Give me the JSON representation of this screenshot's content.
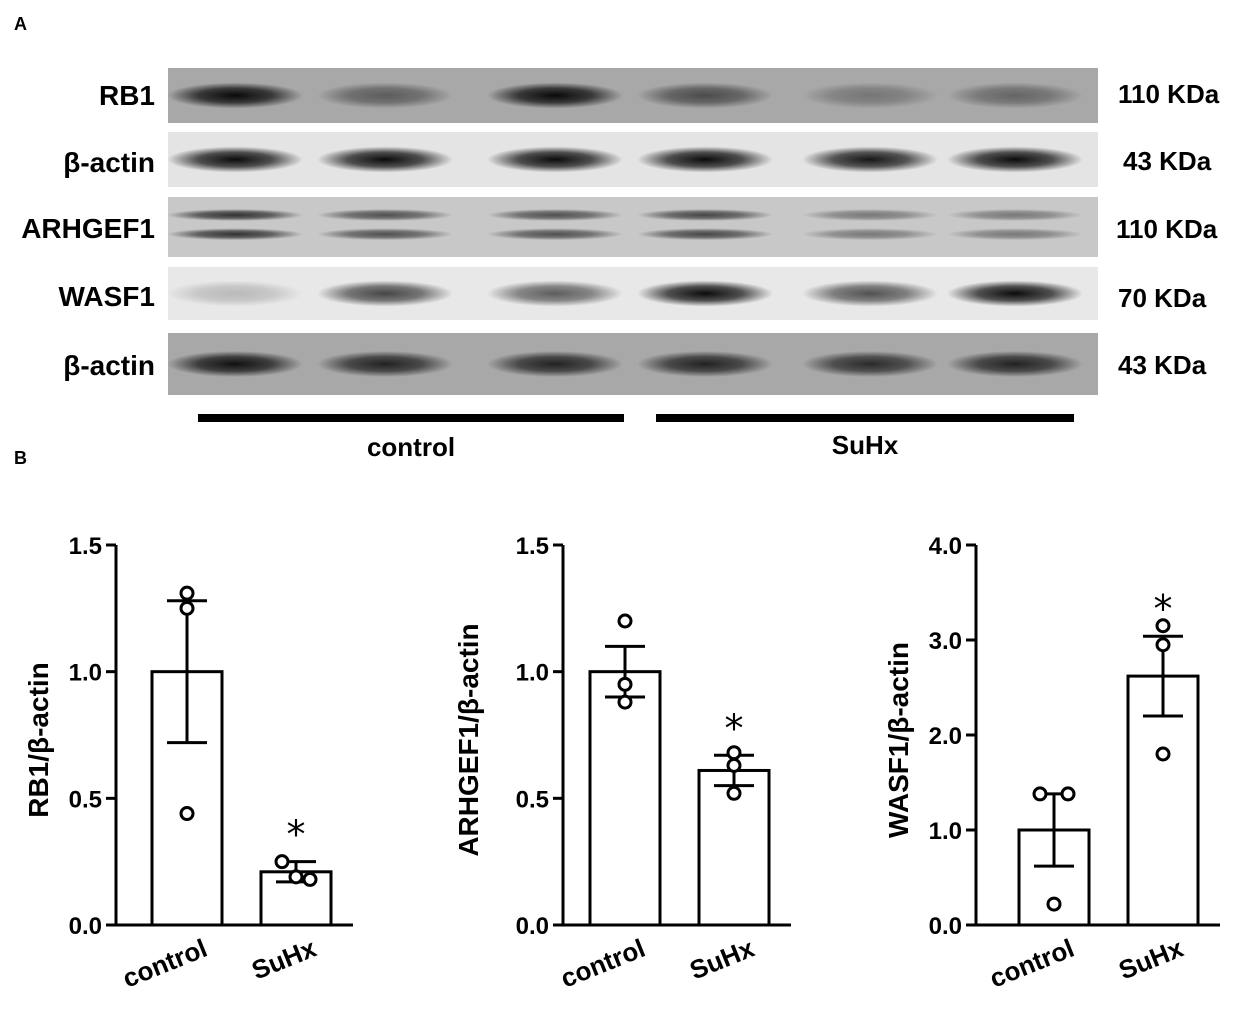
{
  "panels": {
    "a": "A",
    "b": "B"
  },
  "blot": {
    "rows": [
      {
        "name": "RB1",
        "kda": "110 KDa",
        "bg": "#a8a8a8",
        "bands": [
          0.95,
          0.45,
          0.95,
          0.55,
          0.3,
          0.4
        ],
        "double": false
      },
      {
        "name": "β-actin",
        "kda": "43 KDa",
        "bg": "#e4e4e4",
        "bands": [
          0.95,
          0.95,
          0.95,
          0.95,
          0.9,
          0.95
        ],
        "double": false
      },
      {
        "name": "ARHGEF1",
        "kda": "110 KDa",
        "bg": "#c8c8c8",
        "bands": [
          0.75,
          0.6,
          0.6,
          0.65,
          0.4,
          0.4
        ],
        "double": true
      },
      {
        "name": "WASF1",
        "kda": "70 KDa",
        "bg": "#e8e8e8",
        "bands": [
          0.2,
          0.7,
          0.6,
          0.95,
          0.65,
          0.95
        ],
        "double": false
      },
      {
        "name": "β-actin",
        "kda": "43 KDa",
        "bg": "#a8a8a8",
        "bands": [
          0.9,
          0.8,
          0.8,
          0.8,
          0.75,
          0.8
        ],
        "double": false
      }
    ],
    "groups": [
      {
        "label": "control"
      },
      {
        "label": "SuHx"
      }
    ]
  },
  "chart_data": [
    {
      "type": "bar",
      "categories": [
        "control",
        "SuHx"
      ],
      "values": [
        1.0,
        0.21
      ],
      "sem": [
        0.28,
        0.04
      ],
      "points": [
        [
          1.31,
          1.25,
          0.44
        ],
        [
          0.25,
          0.18,
          0.19
        ]
      ],
      "ylabel": "RB1/β-actin",
      "ylim": [
        0,
        1.5
      ],
      "yticks": [
        "0.0",
        "0.5",
        "1.0",
        "1.5"
      ],
      "significance": [
        "",
        "*"
      ]
    },
    {
      "type": "bar",
      "categories": [
        "control",
        "SuHx"
      ],
      "values": [
        1.0,
        0.61
      ],
      "sem": [
        0.1,
        0.06
      ],
      "points": [
        [
          1.2,
          0.95,
          0.88
        ],
        [
          0.68,
          0.63,
          0.52
        ]
      ],
      "ylabel": "ARHGEF1/β-actin",
      "ylim": [
        0,
        1.5
      ],
      "yticks": [
        "0.0",
        "0.5",
        "1.0",
        "1.5"
      ],
      "significance": [
        "",
        "*"
      ]
    },
    {
      "type": "bar",
      "categories": [
        "control",
        "SuHx"
      ],
      "values": [
        1.0,
        2.62
      ],
      "sem": [
        0.38,
        0.42
      ],
      "points": [
        [
          1.38,
          1.38,
          0.22
        ],
        [
          3.15,
          2.95,
          1.8
        ]
      ],
      "ylabel": "WASF1/β-actin",
      "ylim": [
        0,
        4.0
      ],
      "yticks": [
        "0.0",
        "1.0",
        "2.0",
        "3.0",
        "4.0"
      ],
      "significance": [
        "",
        "*"
      ]
    }
  ]
}
